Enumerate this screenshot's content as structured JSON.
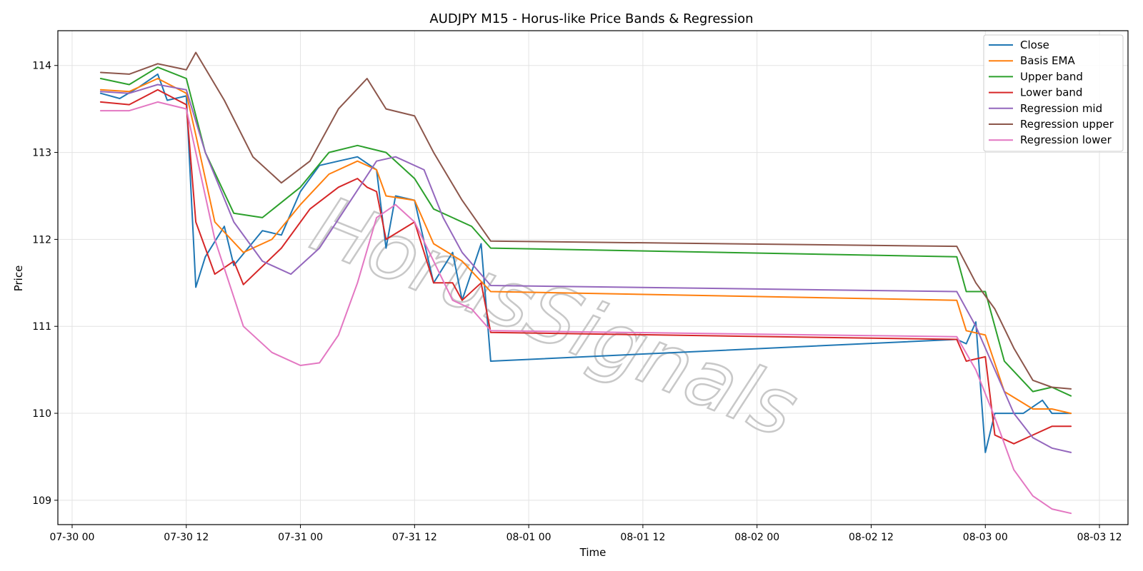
{
  "chart_data": {
    "type": "line",
    "title": "AUDJPY M15 - Horus-like Price Bands & Regression",
    "xlabel": "Time",
    "ylabel": "Price",
    "x_ticks": [
      "07-30 00",
      "07-30 12",
      "07-31 00",
      "07-31 12",
      "08-01 00",
      "08-01 12",
      "08-02 00",
      "08-02 12",
      "08-03 00",
      "08-03 12"
    ],
    "y_ticks": [
      "109",
      "110",
      "111",
      "112",
      "113",
      "114"
    ],
    "xlim": [
      "07-29 22:30",
      "08-03 15:00"
    ],
    "ylim": [
      108.72,
      114.4
    ],
    "grid": true,
    "legend_position": "top-right",
    "watermark": "HorusSignals",
    "series": [
      {
        "name": "Close",
        "color": "#1f77b4",
        "points": [
          [
            "07-30 03:00",
            113.68
          ],
          [
            "07-30 05:00",
            113.62
          ],
          [
            "07-30 07:00",
            113.75
          ],
          [
            "07-30 09:00",
            113.9
          ],
          [
            "07-30 10:00",
            113.6
          ],
          [
            "07-30 12:00",
            113.65
          ],
          [
            "07-30 13:00",
            111.45
          ],
          [
            "07-30 14:00",
            111.8
          ],
          [
            "07-30 16:00",
            112.15
          ],
          [
            "07-30 17:00",
            111.7
          ],
          [
            "07-30 20:00",
            112.1
          ],
          [
            "07-30 22:00",
            112.05
          ],
          [
            "07-31 00:00",
            112.55
          ],
          [
            "07-31 02:00",
            112.85
          ],
          [
            "07-31 04:00",
            112.9
          ],
          [
            "07-31 06:00",
            112.95
          ],
          [
            "07-31 08:00",
            112.8
          ],
          [
            "07-31 09:00",
            111.9
          ],
          [
            "07-31 10:00",
            112.5
          ],
          [
            "07-31 12:00",
            112.45
          ],
          [
            "07-31 14:00",
            111.5
          ],
          [
            "07-31 16:00",
            111.85
          ],
          [
            "07-31 17:00",
            111.3
          ],
          [
            "07-31 19:00",
            111.95
          ],
          [
            "07-31 20:00",
            110.6
          ],
          [
            "08-02 21:00",
            110.85
          ],
          [
            "08-02 22:00",
            110.8
          ],
          [
            "08-02 23:00",
            111.05
          ],
          [
            "08-03 00:00",
            109.55
          ],
          [
            "08-03 01:00",
            110.0
          ],
          [
            "08-03 04:00",
            110.0
          ],
          [
            "08-03 06:00",
            110.15
          ],
          [
            "08-03 07:00",
            110.0
          ],
          [
            "08-03 09:00",
            110.0
          ]
        ]
      },
      {
        "name": "Basis EMA",
        "color": "#ff7f0e",
        "points": [
          [
            "07-30 03:00",
            113.72
          ],
          [
            "07-30 06:00",
            113.7
          ],
          [
            "07-30 09:00",
            113.85
          ],
          [
            "07-30 12:00",
            113.68
          ],
          [
            "07-30 13:00",
            113.2
          ],
          [
            "07-30 15:00",
            112.2
          ],
          [
            "07-30 18:00",
            111.85
          ],
          [
            "07-30 21:00",
            112.0
          ],
          [
            "07-31 00:00",
            112.4
          ],
          [
            "07-31 03:00",
            112.75
          ],
          [
            "07-31 06:00",
            112.9
          ],
          [
            "07-31 08:00",
            112.8
          ],
          [
            "07-31 09:00",
            112.5
          ],
          [
            "07-31 12:00",
            112.45
          ],
          [
            "07-31 14:00",
            111.95
          ],
          [
            "07-31 17:00",
            111.75
          ],
          [
            "07-31 20:00",
            111.4
          ],
          [
            "08-02 21:00",
            111.3
          ],
          [
            "08-02 22:00",
            110.95
          ],
          [
            "08-03 00:00",
            110.9
          ],
          [
            "08-03 02:00",
            110.25
          ],
          [
            "08-03 05:00",
            110.05
          ],
          [
            "08-03 07:00",
            110.05
          ],
          [
            "08-03 09:00",
            110.0
          ]
        ]
      },
      {
        "name": "Upper band",
        "color": "#2ca02c",
        "points": [
          [
            "07-30 03:00",
            113.85
          ],
          [
            "07-30 06:00",
            113.78
          ],
          [
            "07-30 09:00",
            113.98
          ],
          [
            "07-30 12:00",
            113.85
          ],
          [
            "07-30 14:00",
            113.0
          ],
          [
            "07-30 17:00",
            112.3
          ],
          [
            "07-30 20:00",
            112.25
          ],
          [
            "07-31 00:00",
            112.6
          ],
          [
            "07-31 03:00",
            113.0
          ],
          [
            "07-31 06:00",
            113.08
          ],
          [
            "07-31 09:00",
            113.0
          ],
          [
            "07-31 12:00",
            112.7
          ],
          [
            "07-31 14:00",
            112.35
          ],
          [
            "07-31 18:00",
            112.15
          ],
          [
            "07-31 20:00",
            111.9
          ],
          [
            "08-02 21:00",
            111.8
          ],
          [
            "08-02 22:00",
            111.4
          ],
          [
            "08-03 00:00",
            111.4
          ],
          [
            "08-03 02:00",
            110.6
          ],
          [
            "08-03 05:00",
            110.25
          ],
          [
            "08-03 07:00",
            110.3
          ],
          [
            "08-03 09:00",
            110.2
          ]
        ]
      },
      {
        "name": "Lower band",
        "color": "#d62728",
        "points": [
          [
            "07-30 03:00",
            113.58
          ],
          [
            "07-30 06:00",
            113.55
          ],
          [
            "07-30 09:00",
            113.72
          ],
          [
            "07-30 12:00",
            113.55
          ],
          [
            "07-30 13:00",
            112.2
          ],
          [
            "07-30 15:00",
            111.6
          ],
          [
            "07-30 17:00",
            111.75
          ],
          [
            "07-30 18:00",
            111.48
          ],
          [
            "07-30 22:00",
            111.9
          ],
          [
            "07-31 01:00",
            112.35
          ],
          [
            "07-31 04:00",
            112.6
          ],
          [
            "07-31 06:00",
            112.7
          ],
          [
            "07-31 07:00",
            112.6
          ],
          [
            "07-31 08:00",
            112.55
          ],
          [
            "07-31 09:00",
            112.0
          ],
          [
            "07-31 12:00",
            112.2
          ],
          [
            "07-31 14:00",
            111.5
          ],
          [
            "07-31 16:00",
            111.5
          ],
          [
            "07-31 17:00",
            111.3
          ],
          [
            "07-31 19:00",
            111.5
          ],
          [
            "07-31 20:00",
            110.93
          ],
          [
            "08-02 21:00",
            110.85
          ],
          [
            "08-02 22:00",
            110.6
          ],
          [
            "08-03 00:00",
            110.65
          ],
          [
            "08-03 01:00",
            109.75
          ],
          [
            "08-03 03:00",
            109.65
          ],
          [
            "08-03 05:00",
            109.75
          ],
          [
            "08-03 07:00",
            109.85
          ],
          [
            "08-03 09:00",
            109.85
          ]
        ]
      },
      {
        "name": "Regression mid",
        "color": "#9467bd",
        "points": [
          [
            "07-30 03:00",
            113.7
          ],
          [
            "07-30 06:00",
            113.68
          ],
          [
            "07-30 09:00",
            113.78
          ],
          [
            "07-30 12:00",
            113.72
          ],
          [
            "07-30 14:00",
            113.0
          ],
          [
            "07-30 17:00",
            112.2
          ],
          [
            "07-30 20:00",
            111.75
          ],
          [
            "07-30 23:00",
            111.6
          ],
          [
            "07-31 02:00",
            111.9
          ],
          [
            "07-31 05:00",
            112.4
          ],
          [
            "07-31 08:00",
            112.9
          ],
          [
            "07-31 10:00",
            112.95
          ],
          [
            "07-31 13:00",
            112.8
          ],
          [
            "07-31 15:00",
            112.25
          ],
          [
            "07-31 17:00",
            111.85
          ],
          [
            "07-31 20:00",
            111.47
          ],
          [
            "08-02 21:00",
            111.4
          ],
          [
            "08-02 23:00",
            111.0
          ],
          [
            "08-03 01:00",
            110.5
          ],
          [
            "08-03 03:00",
            110.0
          ],
          [
            "08-03 05:00",
            109.72
          ],
          [
            "08-03 07:00",
            109.6
          ],
          [
            "08-03 09:00",
            109.55
          ]
        ]
      },
      {
        "name": "Regression upper",
        "color": "#8c564b",
        "points": [
          [
            "07-30 03:00",
            113.92
          ],
          [
            "07-30 06:00",
            113.9
          ],
          [
            "07-30 09:00",
            114.02
          ],
          [
            "07-30 12:00",
            113.95
          ],
          [
            "07-30 13:00",
            114.15
          ],
          [
            "07-30 16:00",
            113.6
          ],
          [
            "07-30 19:00",
            112.95
          ],
          [
            "07-30 22:00",
            112.65
          ],
          [
            "07-31 01:00",
            112.9
          ],
          [
            "07-31 04:00",
            113.5
          ],
          [
            "07-31 07:00",
            113.85
          ],
          [
            "07-31 09:00",
            113.5
          ],
          [
            "07-31 12:00",
            113.42
          ],
          [
            "07-31 14:00",
            113.0
          ],
          [
            "07-31 17:00",
            112.45
          ],
          [
            "07-31 20:00",
            111.98
          ],
          [
            "08-02 21:00",
            111.92
          ],
          [
            "08-02 23:00",
            111.5
          ],
          [
            "08-03 01:00",
            111.2
          ],
          [
            "08-03 03:00",
            110.75
          ],
          [
            "08-03 05:00",
            110.38
          ],
          [
            "08-03 07:00",
            110.3
          ],
          [
            "08-03 09:00",
            110.28
          ]
        ]
      },
      {
        "name": "Regression lower",
        "color": "#e377c2",
        "points": [
          [
            "07-30 03:00",
            113.48
          ],
          [
            "07-30 06:00",
            113.48
          ],
          [
            "07-30 09:00",
            113.58
          ],
          [
            "07-30 12:00",
            113.5
          ],
          [
            "07-30 15:00",
            112.0
          ],
          [
            "07-30 18:00",
            111.0
          ],
          [
            "07-30 21:00",
            110.7
          ],
          [
            "07-31 00:00",
            110.55
          ],
          [
            "07-31 02:00",
            110.58
          ],
          [
            "07-31 04:00",
            110.9
          ],
          [
            "07-31 06:00",
            111.5
          ],
          [
            "07-31 08:00",
            112.25
          ],
          [
            "07-31 10:00",
            112.4
          ],
          [
            "07-31 12:00",
            112.2
          ],
          [
            "07-31 14:00",
            111.75
          ],
          [
            "07-31 16:00",
            111.3
          ],
          [
            "07-31 18:00",
            111.2
          ],
          [
            "07-31 20:00",
            110.95
          ],
          [
            "08-02 21:00",
            110.88
          ],
          [
            "08-02 23:00",
            110.5
          ],
          [
            "08-03 01:00",
            109.95
          ],
          [
            "08-03 03:00",
            109.35
          ],
          [
            "08-03 05:00",
            109.05
          ],
          [
            "08-03 07:00",
            108.9
          ],
          [
            "08-03 09:00",
            108.85
          ]
        ]
      }
    ]
  }
}
